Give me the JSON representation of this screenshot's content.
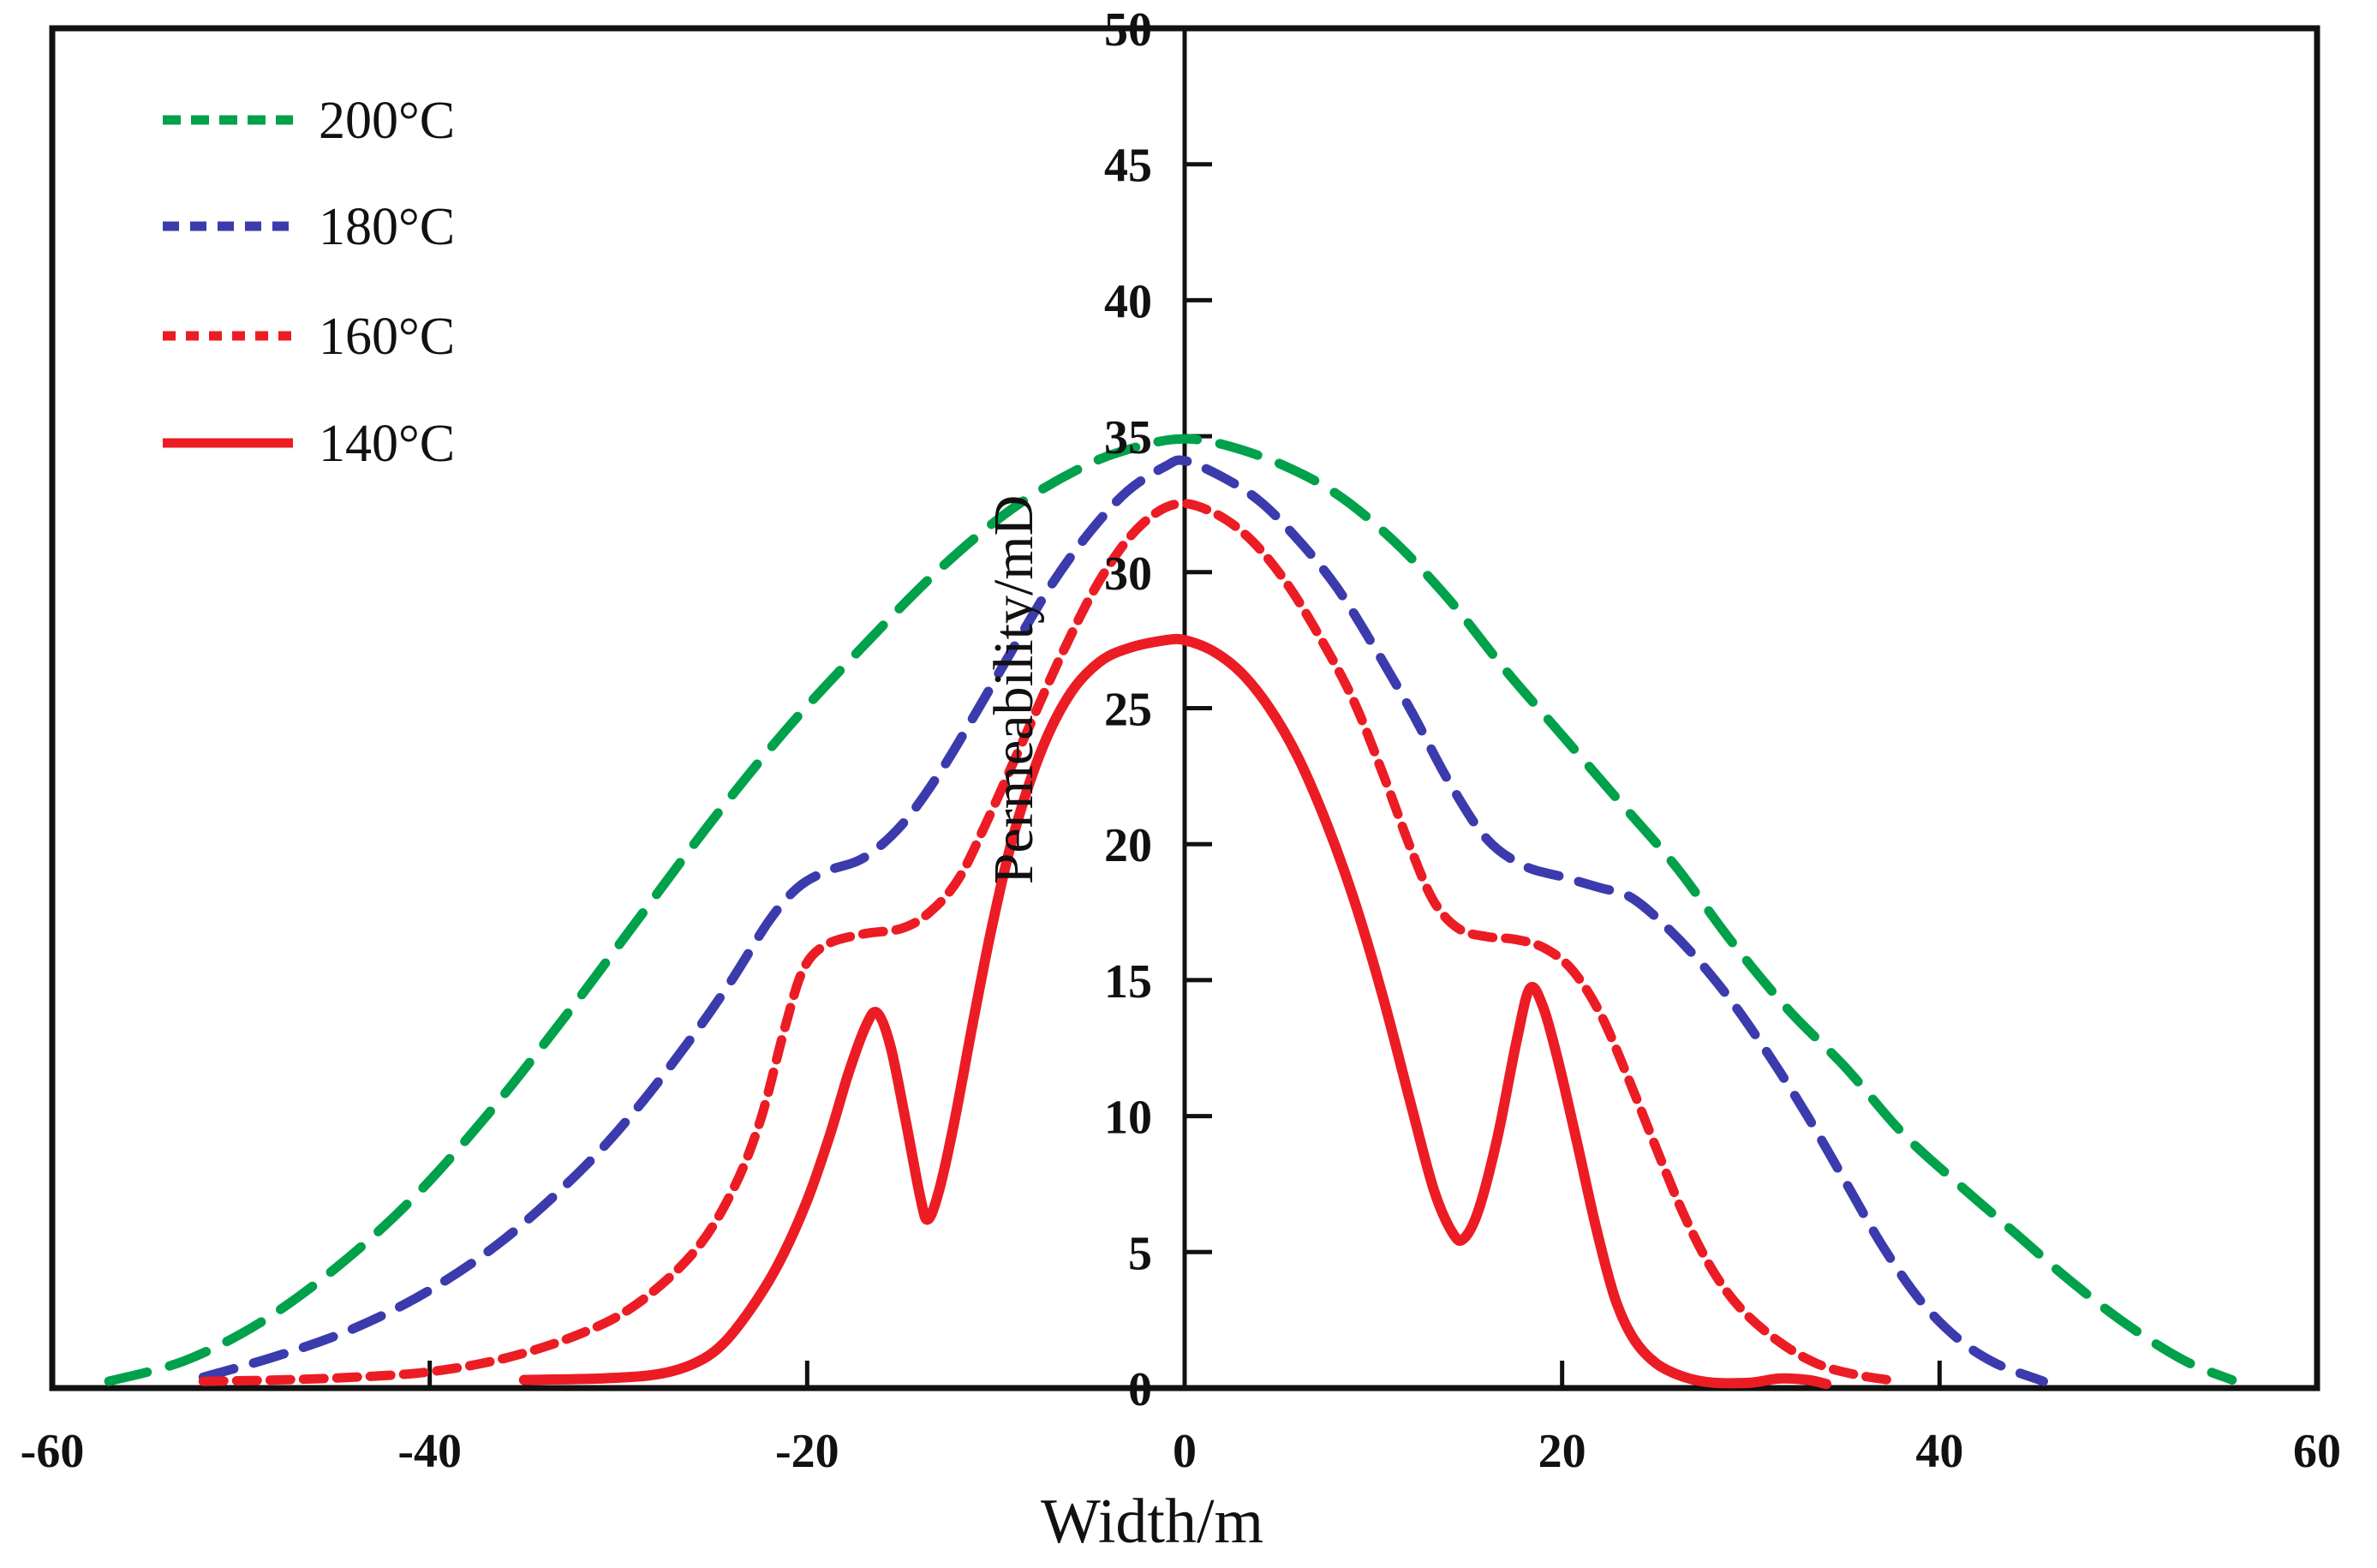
{
  "chart_data": {
    "type": "line",
    "title": "",
    "xlabel": "Width/m",
    "ylabel": "Permeability/mD",
    "xlim": [
      -60,
      60
    ],
    "ylim": [
      0,
      50
    ],
    "x_ticks": [
      -60,
      -40,
      -20,
      0,
      20,
      40,
      60
    ],
    "y_ticks": [
      0,
      5,
      10,
      15,
      20,
      25,
      30,
      35,
      40,
      45,
      50
    ],
    "grid": false,
    "legend_position": "top-left",
    "axis_color": "#111111",
    "background_color": "#ffffff",
    "series": [
      {
        "key": "t200",
        "name": "200°C",
        "color": "#00A14B",
        "style": "dashed-long",
        "dash": [
          46,
          27
        ],
        "legend_dash": [
          21,
          12
        ],
        "stroke_width": 11,
        "points": [
          [
            -57,
            0.25
          ],
          [
            -53,
            1.0
          ],
          [
            -49,
            2.4
          ],
          [
            -45,
            4.4
          ],
          [
            -41,
            6.9
          ],
          [
            -37,
            10.0
          ],
          [
            -33,
            13.5
          ],
          [
            -29,
            17.2
          ],
          [
            -25,
            20.9
          ],
          [
            -21,
            24.3
          ],
          [
            -17,
            27.3
          ],
          [
            -13,
            30.1
          ],
          [
            -9,
            32.4
          ],
          [
            -5,
            34.0
          ],
          [
            -2,
            34.7
          ],
          [
            0,
            34.9
          ],
          [
            2,
            34.7
          ],
          [
            5,
            34.0
          ],
          [
            8,
            32.9
          ],
          [
            11,
            31.2
          ],
          [
            14,
            29.0
          ],
          [
            17,
            26.4
          ],
          [
            20,
            24.0
          ],
          [
            23,
            21.6
          ],
          [
            26,
            19.2
          ],
          [
            29,
            16.4
          ],
          [
            32,
            13.9
          ],
          [
            35,
            11.8
          ],
          [
            38,
            9.4
          ],
          [
            41,
            7.5
          ],
          [
            44,
            5.7
          ],
          [
            47,
            3.9
          ],
          [
            50,
            2.3
          ],
          [
            53,
            1.0
          ],
          [
            55.5,
            0.3
          ]
        ]
      },
      {
        "key": "t180",
        "name": "180°C",
        "color": "#3B3BAD",
        "style": "dashed",
        "dash": [
          37,
          24
        ],
        "legend_dash": [
          19,
          13
        ],
        "stroke_width": 11,
        "points": [
          [
            -52,
            0.4
          ],
          [
            -48,
            1.2
          ],
          [
            -44,
            2.2
          ],
          [
            -40,
            3.6
          ],
          [
            -36,
            5.5
          ],
          [
            -32,
            8.0
          ],
          [
            -29,
            10.3
          ],
          [
            -26,
            13.0
          ],
          [
            -24,
            15.0
          ],
          [
            -22,
            17.2
          ],
          [
            -20.5,
            18.4
          ],
          [
            -19,
            19.0
          ],
          [
            -17,
            19.5
          ],
          [
            -15,
            20.7
          ],
          [
            -13,
            22.6
          ],
          [
            -11,
            24.9
          ],
          [
            -9,
            27.3
          ],
          [
            -7,
            29.6
          ],
          [
            -5,
            31.5
          ],
          [
            -3,
            33.0
          ],
          [
            -1,
            33.9
          ],
          [
            0,
            34.1
          ],
          [
            2,
            33.5
          ],
          [
            4,
            32.6
          ],
          [
            6,
            31.2
          ],
          [
            8,
            29.5
          ],
          [
            10,
            27.3
          ],
          [
            12,
            24.9
          ],
          [
            14,
            22.3
          ],
          [
            16,
            20.2
          ],
          [
            18,
            19.2
          ],
          [
            20,
            18.8
          ],
          [
            22,
            18.4
          ],
          [
            23.5,
            18.1
          ],
          [
            25,
            17.3
          ],
          [
            27,
            15.9
          ],
          [
            29,
            14.2
          ],
          [
            31,
            12.2
          ],
          [
            33,
            10.0
          ],
          [
            35,
            7.6
          ],
          [
            37,
            5.2
          ],
          [
            39,
            3.2
          ],
          [
            41,
            1.8
          ],
          [
            43,
            0.9
          ],
          [
            45.5,
            0.25
          ]
        ]
      },
      {
        "key": "t160",
        "name": "160°C",
        "color": "#EC1C24",
        "style": "dashed-short",
        "dash": [
          24,
          15
        ],
        "legend_dash": [
          15,
          12
        ],
        "stroke_width": 11,
        "points": [
          [
            -52,
            0.25
          ],
          [
            -48,
            0.3
          ],
          [
            -44,
            0.4
          ],
          [
            -40,
            0.6
          ],
          [
            -36,
            1.1
          ],
          [
            -32,
            2.0
          ],
          [
            -29,
            3.1
          ],
          [
            -26,
            5.0
          ],
          [
            -24,
            7.2
          ],
          [
            -22.5,
            9.8
          ],
          [
            -21.2,
            13.2
          ],
          [
            -20.2,
            15.4
          ],
          [
            -19,
            16.3
          ],
          [
            -17,
            16.7
          ],
          [
            -15,
            16.9
          ],
          [
            -13.5,
            17.5
          ],
          [
            -12,
            18.7
          ],
          [
            -10.5,
            20.8
          ],
          [
            -8.5,
            23.9
          ],
          [
            -6.5,
            27.0
          ],
          [
            -4.5,
            29.7
          ],
          [
            -2.5,
            31.6
          ],
          [
            -0.5,
            32.5
          ],
          [
            1.5,
            32.2
          ],
          [
            3.5,
            31.2
          ],
          [
            5.5,
            29.5
          ],
          [
            7.5,
            27.2
          ],
          [
            9,
            25.2
          ],
          [
            10.5,
            22.6
          ],
          [
            12,
            19.8
          ],
          [
            13.2,
            17.9
          ],
          [
            14.5,
            16.9
          ],
          [
            16,
            16.6
          ],
          [
            17.5,
            16.5
          ],
          [
            19,
            16.2
          ],
          [
            20.5,
            15.4
          ],
          [
            22,
            13.8
          ],
          [
            23.5,
            11.4
          ],
          [
            25,
            8.8
          ],
          [
            26.5,
            6.3
          ],
          [
            28,
            4.3
          ],
          [
            29.5,
            2.9
          ],
          [
            31.5,
            1.7
          ],
          [
            33.5,
            0.9
          ],
          [
            35.5,
            0.5
          ],
          [
            37.8,
            0.25
          ]
        ]
      },
      {
        "key": "t140",
        "name": "140°C",
        "color": "#EC1C24",
        "style": "solid",
        "dash": null,
        "legend_dash": null,
        "stroke_width": 12,
        "points": [
          [
            -35,
            0.3
          ],
          [
            -31,
            0.35
          ],
          [
            -28,
            0.5
          ],
          [
            -26,
            0.9
          ],
          [
            -24.5,
            1.6
          ],
          [
            -23,
            2.9
          ],
          [
            -21.5,
            4.6
          ],
          [
            -20,
            6.9
          ],
          [
            -18.8,
            9.3
          ],
          [
            -17.8,
            11.6
          ],
          [
            -16.9,
            13.3
          ],
          [
            -16.3,
            13.8
          ],
          [
            -15.6,
            12.6
          ],
          [
            -14.8,
            9.9
          ],
          [
            -14,
            7.0
          ],
          [
            -13.6,
            6.2
          ],
          [
            -13,
            7.3
          ],
          [
            -12.2,
            9.8
          ],
          [
            -11.2,
            13.5
          ],
          [
            -10.2,
            17.0
          ],
          [
            -9,
            20.5
          ],
          [
            -7.5,
            23.6
          ],
          [
            -6,
            25.6
          ],
          [
            -4.5,
            26.7
          ],
          [
            -3,
            27.2
          ],
          [
            -1,
            27.5
          ],
          [
            0,
            27.5
          ],
          [
            1.5,
            27.1
          ],
          [
            3,
            26.3
          ],
          [
            4.5,
            25.0
          ],
          [
            6,
            23.2
          ],
          [
            7.5,
            20.8
          ],
          [
            9,
            17.9
          ],
          [
            10.5,
            14.4
          ],
          [
            12,
            10.4
          ],
          [
            13.2,
            7.3
          ],
          [
            14.2,
            5.7
          ],
          [
            14.8,
            5.5
          ],
          [
            15.6,
            6.6
          ],
          [
            16.6,
            9.3
          ],
          [
            17.6,
            12.8
          ],
          [
            18.3,
            14.7
          ],
          [
            19,
            14.0
          ],
          [
            19.8,
            12.0
          ],
          [
            20.8,
            9.0
          ],
          [
            21.8,
            5.9
          ],
          [
            22.8,
            3.3
          ],
          [
            23.8,
            1.8
          ],
          [
            25,
            0.9
          ],
          [
            26.5,
            0.4
          ],
          [
            28,
            0.2
          ],
          [
            30,
            0.2
          ],
          [
            31.5,
            0.35
          ],
          [
            33,
            0.3
          ],
          [
            34,
            0.15
          ]
        ]
      }
    ]
  }
}
